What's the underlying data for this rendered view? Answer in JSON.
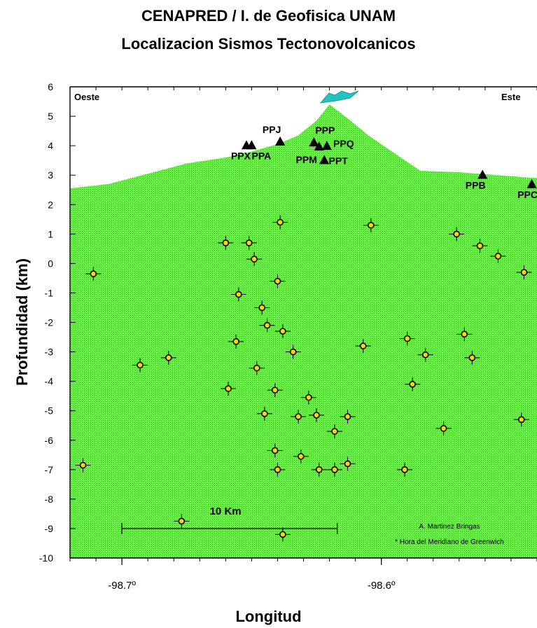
{
  "chart_data": {
    "type": "scatter",
    "title": "CENAPRED / I. de Geofisica UNAM",
    "subtitle": "Localizacion Sismos Tectonovolcanicos",
    "xlabel": "Longitud",
    "ylabel": "Profundidad (km)",
    "xlim": [
      -98.72,
      -98.54
    ],
    "ylim": [
      -10,
      6
    ],
    "xticks": [
      -98.7,
      -98.6
    ],
    "xtick_labels": [
      "-98.7º",
      "-98.6º"
    ],
    "yticks": [
      6,
      5,
      4,
      3,
      2,
      1,
      0,
      -1,
      -2,
      -3,
      -4,
      -5,
      -6,
      -7,
      -8,
      -9,
      -10
    ],
    "corner_labels": {
      "left": "Oeste",
      "right": "Este"
    },
    "terrain_profile": [
      [
        -98.72,
        2.55
      ],
      [
        -98.705,
        2.7
      ],
      [
        -98.69,
        3.05
      ],
      [
        -98.675,
        3.4
      ],
      [
        -98.66,
        3.6
      ],
      [
        -98.65,
        3.8
      ],
      [
        -98.64,
        4.05
      ],
      [
        -98.632,
        4.35
      ],
      [
        -98.625,
        4.85
      ],
      [
        -98.62,
        5.4
      ],
      [
        -98.614,
        5.0
      ],
      [
        -98.605,
        4.35
      ],
      [
        -98.595,
        3.75
      ],
      [
        -98.585,
        3.15
      ],
      [
        -98.57,
        3.1
      ],
      [
        -98.555,
        3.0
      ],
      [
        -98.54,
        2.9
      ]
    ],
    "stations": [
      {
        "name": "PPX",
        "x": -98.652,
        "y": 4.02
      },
      {
        "name": "PPA",
        "x": -98.65,
        "y": 4.02
      },
      {
        "name": "PPJ",
        "x": -98.639,
        "y": 4.15
      },
      {
        "name": "PPP",
        "x": -98.626,
        "y": 4.12
      },
      {
        "name": "PPM",
        "x": -98.624,
        "y": 3.98
      },
      {
        "name": "PPQ",
        "x": -98.621,
        "y": 4.0
      },
      {
        "name": "PPT",
        "x": -98.622,
        "y": 3.52
      },
      {
        "name": "PPB",
        "x": -98.561,
        "y": 3.02
      },
      {
        "name": "PPC",
        "x": -98.542,
        "y": 2.7
      }
    ],
    "events": [
      [
        -98.711,
        -0.35
      ],
      [
        -98.715,
        -6.85
      ],
      [
        -98.693,
        -3.45
      ],
      [
        -98.682,
        -3.2
      ],
      [
        -98.677,
        -8.75
      ],
      [
        -98.66,
        0.7
      ],
      [
        -98.655,
        -1.05
      ],
      [
        -98.656,
        -2.65
      ],
      [
        -98.659,
        -4.25
      ],
      [
        -98.651,
        0.7
      ],
      [
        -98.649,
        0.15
      ],
      [
        -98.646,
        -1.5
      ],
      [
        -98.644,
        -2.1
      ],
      [
        -98.648,
        -3.55
      ],
      [
        -98.645,
        -5.1
      ],
      [
        -98.639,
        1.4
      ],
      [
        -98.64,
        -0.6
      ],
      [
        -98.638,
        -2.3
      ],
      [
        -98.641,
        -4.3
      ],
      [
        -98.641,
        -6.35
      ],
      [
        -98.64,
        -7.0
      ],
      [
        -98.638,
        -9.2
      ],
      [
        -98.634,
        -3.0
      ],
      [
        -98.632,
        -5.2
      ],
      [
        -98.631,
        -6.55
      ],
      [
        -98.628,
        -4.55
      ],
      [
        -98.624,
        -7.0
      ],
      [
        -98.625,
        -5.15
      ],
      [
        -98.618,
        -7.0
      ],
      [
        -98.618,
        -5.7
      ],
      [
        -98.613,
        -5.2
      ],
      [
        -98.613,
        -6.8
      ],
      [
        -98.607,
        -2.8
      ],
      [
        -98.604,
        1.3
      ],
      [
        -98.59,
        -2.55
      ],
      [
        -98.588,
        -4.1
      ],
      [
        -98.583,
        -3.1
      ],
      [
        -98.576,
        -5.6
      ],
      [
        -98.591,
        -7.0
      ],
      [
        -98.568,
        -2.4
      ],
      [
        -98.565,
        -3.2
      ],
      [
        -98.571,
        1.0
      ],
      [
        -98.546,
        -5.3
      ],
      [
        -98.545,
        -0.3
      ],
      [
        -98.555,
        0.25
      ],
      [
        -98.562,
        0.6
      ]
    ],
    "scale_bar": {
      "label": "10 Km",
      "x_start": -98.7,
      "x_end": -98.617,
      "y": -9.0
    },
    "credits": [
      "A. Martinez Bringas",
      "* Hora del Meridiano de Greenwich"
    ],
    "colors": {
      "terrain": "#66ee44",
      "terrain_hatch": "#3fb52a",
      "peak": "#22c3c0",
      "event_fill": "#ffd700",
      "event_stroke": "#000000"
    },
    "grid": false,
    "legend": "none"
  }
}
